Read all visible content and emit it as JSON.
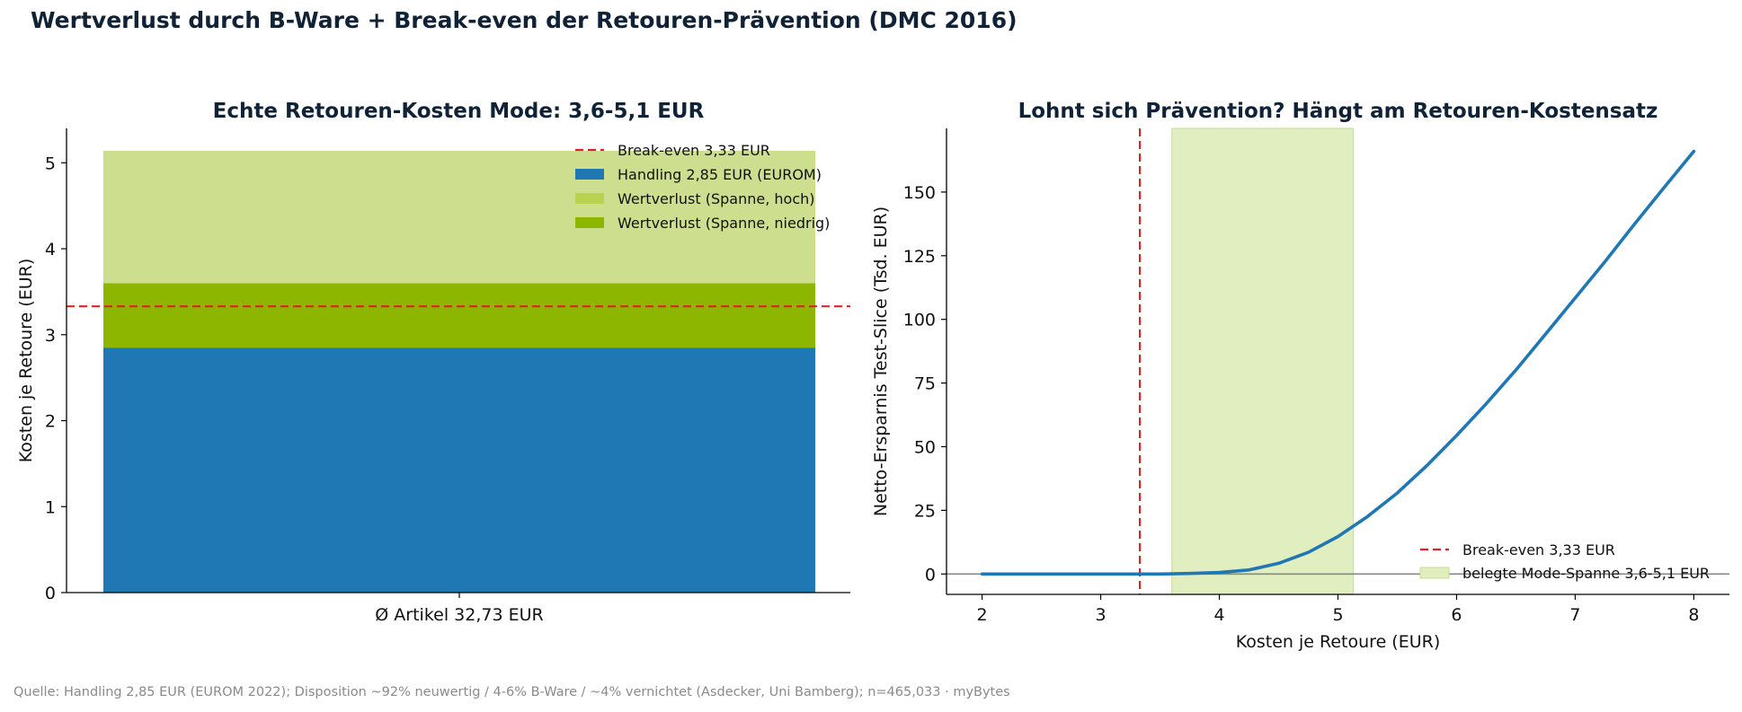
{
  "figure": {
    "suptitle": "Wertverlust durch B-Ware + Break-even der Retouren-Prävention (DMC 2016)",
    "source": "Quelle: Handling 2,85 EUR (EUROM 2022); Disposition ~92% neuwertig / 4-6% B-Ware / ~4% vernichtet (Asdecker, Uni Bamberg); n=465,033 · myBytes"
  },
  "colors": {
    "handling": "#1f77b4",
    "loss_low": "#8db600",
    "loss_high": "#cddf8e",
    "breakeven": "#d62728",
    "curve": "#1f77b4",
    "span_fill": "#e1eec0",
    "span_edge": "#c6dd8c",
    "zero_line": "#888888"
  },
  "chart_data": [
    {
      "type": "bar",
      "title": "Echte Retouren-Kosten Mode: 3,6-5,1 EUR",
      "categories": [
        "Ø Artikel 32,73 EUR"
      ],
      "series": [
        {
          "name": "Handling 2,85 EUR (EUROM)",
          "values": [
            2.85
          ]
        },
        {
          "name": "Wertverlust (Spanne, niedrig)",
          "values": [
            0.75
          ]
        },
        {
          "name": "Wertverlust (Spanne, hoch)",
          "values": [
            1.54
          ]
        }
      ],
      "stacked": true,
      "hline": {
        "y": 3.33,
        "name": "Break-even 3,33 EUR"
      },
      "xlabel": "",
      "ylabel": "Kosten je Retoure (EUR)",
      "ylim": [
        0,
        5.4
      ],
      "yticks": [
        0,
        1,
        2,
        3,
        4,
        5
      ],
      "legend_order": [
        "Break-even 3,33 EUR",
        "Handling 2,85 EUR (EUROM)",
        "Wertverlust (Spanne, hoch)",
        "Wertverlust (Spanne, niedrig)"
      ],
      "legend_loc": "upper right",
      "grid": false
    },
    {
      "type": "line",
      "title": "Lohnt sich Prävention? Hängt am Retouren-Kostensatz",
      "x": [
        2.0,
        2.25,
        2.5,
        2.75,
        3.0,
        3.25,
        3.5,
        3.75,
        4.0,
        4.25,
        4.5,
        4.75,
        5.0,
        5.25,
        5.5,
        5.75,
        6.0,
        6.25,
        6.5,
        6.75,
        7.0,
        7.25,
        7.5,
        7.75,
        8.0
      ],
      "series": [
        {
          "name": "",
          "values": [
            0,
            0,
            0,
            0,
            0,
            0,
            0,
            0.2,
            0.6,
            1.6,
            4.2,
            8.5,
            14.7,
            22.6,
            31.8,
            42.6,
            54.4,
            66.9,
            80.1,
            94.2,
            108.4,
            122.6,
            137.4,
            151.8,
            166.0
          ]
        }
      ],
      "vline": {
        "x": 3.33,
        "name": "Break-even 3,33 EUR"
      },
      "span": {
        "x0": 3.6,
        "x1": 5.13,
        "name": "belegte Mode-Spanne 3,6-5,1 EUR"
      },
      "hline_zero": 0,
      "xlabel": "Kosten je Retoure (EUR)",
      "ylabel": "Netto-Ersparnis Test-Slice (Tsd. EUR)",
      "xlim": [
        1.7,
        8.3
      ],
      "ylim": [
        -8,
        175
      ],
      "xticks": [
        2,
        3,
        4,
        5,
        6,
        7,
        8
      ],
      "yticks": [
        0,
        25,
        50,
        75,
        100,
        125,
        150
      ],
      "legend_loc": "lower right",
      "grid": false
    }
  ]
}
